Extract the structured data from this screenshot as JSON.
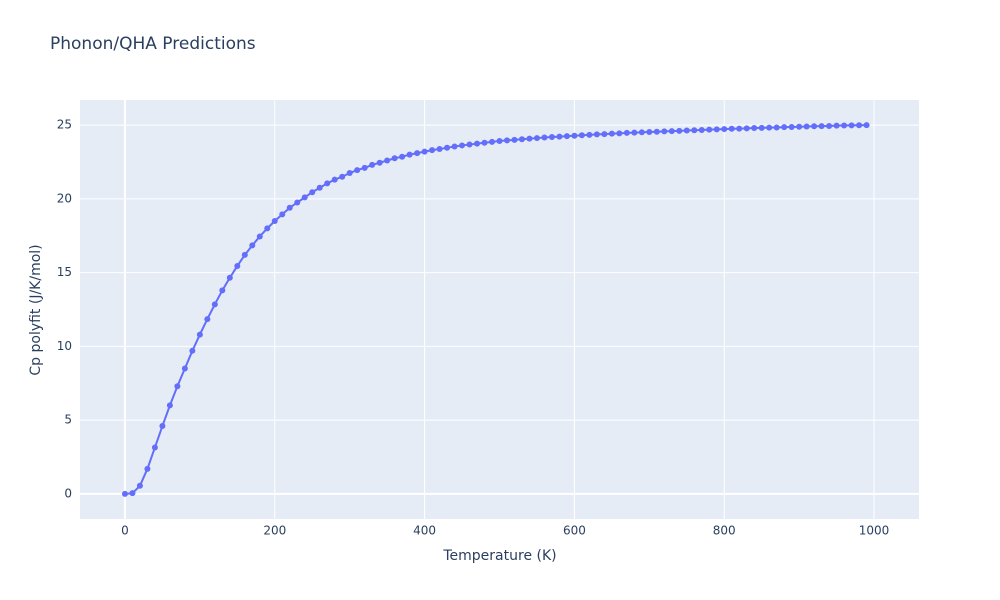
{
  "chart_data": {
    "type": "line",
    "title": "Phonon/QHA Predictions",
    "x_label": "Temperature (K)",
    "y_label": "Cp polyfit (J/K/mol)",
    "x": [
      0,
      10,
      20,
      30,
      40,
      50,
      60,
      70,
      80,
      90,
      100,
      110,
      120,
      130,
      140,
      150,
      160,
      170,
      180,
      190,
      200,
      210,
      220,
      230,
      240,
      250,
      260,
      270,
      280,
      290,
      300,
      310,
      320,
      330,
      340,
      350,
      360,
      370,
      380,
      390,
      400,
      410,
      420,
      430,
      440,
      450,
      460,
      470,
      480,
      490,
      500,
      510,
      520,
      530,
      540,
      550,
      560,
      570,
      580,
      590,
      600,
      610,
      620,
      630,
      640,
      650,
      660,
      670,
      680,
      690,
      700,
      710,
      720,
      730,
      740,
      750,
      760,
      770,
      780,
      790,
      800,
      810,
      820,
      830,
      840,
      850,
      860,
      870,
      880,
      890,
      900,
      910,
      920,
      930,
      940,
      950,
      960,
      970,
      980,
      990
    ],
    "series": [
      {
        "color": "#636efa",
        "values": [
          0,
          0.05,
          0.55,
          1.7,
          3.15,
          4.6,
          6.0,
          7.3,
          8.5,
          9.7,
          10.8,
          11.85,
          12.85,
          13.8,
          14.65,
          15.45,
          16.2,
          16.85,
          17.45,
          18.0,
          18.5,
          18.95,
          19.4,
          19.75,
          20.1,
          20.45,
          20.75,
          21.05,
          21.3,
          21.5,
          21.75,
          21.95,
          22.1,
          22.3,
          22.45,
          22.6,
          22.75,
          22.85,
          23.0,
          23.1,
          23.2,
          23.3,
          23.38,
          23.46,
          23.55,
          23.62,
          23.68,
          23.74,
          23.8,
          23.86,
          23.92,
          23.96,
          24.0,
          24.04,
          24.08,
          24.12,
          24.16,
          24.19,
          24.22,
          24.25,
          24.28,
          24.31,
          24.34,
          24.37,
          24.39,
          24.42,
          24.44,
          24.47,
          24.49,
          24.51,
          24.53,
          24.55,
          24.57,
          24.59,
          24.61,
          24.63,
          24.65,
          24.67,
          24.69,
          24.71,
          24.73,
          24.75,
          24.76,
          24.78,
          24.8,
          24.81,
          24.83,
          24.84,
          24.86,
          24.87,
          24.89,
          24.9,
          24.92,
          24.93,
          24.94,
          24.96,
          24.97,
          24.98,
          24.99,
          25.0
        ]
      }
    ],
    "xlim": [
      -60,
      1060
    ],
    "ylim": [
      -1.7,
      26.7
    ],
    "xticks": [
      0,
      200,
      400,
      600,
      800,
      1000
    ],
    "yticks": [
      0,
      5,
      10,
      15,
      20,
      25
    ],
    "grid": true
  }
}
